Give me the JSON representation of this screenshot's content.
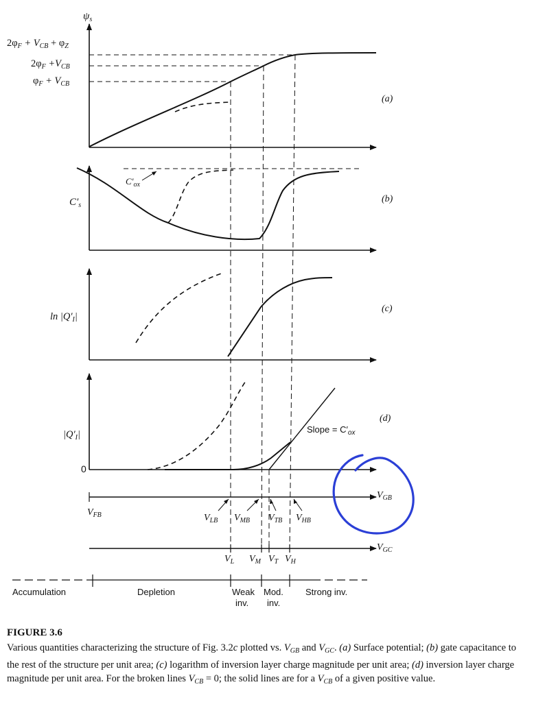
{
  "axis_labels": {
    "psi_s": "ψ",
    "psi_s_sub": "s",
    "cs": "C′",
    "cs_sub": "s",
    "ln_qi": "ln |Q′",
    "ln_qi_sub": "I",
    "ln_qi_end": "|",
    "qi": "|Q′",
    "qi_sub": "I",
    "qi_end": "|",
    "zero": "0",
    "vfb": "V",
    "vfb_sub": "FB"
  },
  "psi_levels": {
    "top": {
      "a": "2φ",
      "a_sub": "F",
      "b": " + V",
      "b_sub": "CB",
      "c": " + φ",
      "c_sub": "Z"
    },
    "mid": {
      "a": "2φ",
      "a_sub": "F",
      "b": " +V",
      "b_sub": "CB"
    },
    "low": {
      "a": "φ",
      "a_sub": "F",
      "b": " + V",
      "b_sub": "CB"
    }
  },
  "panel_tags": {
    "a": "(a)",
    "b": "(b)",
    "c": "(c)",
    "d": "(d)"
  },
  "cox_label": {
    "main": "C′",
    "sub": "ox"
  },
  "slope_label": {
    "text": "Slope = C′",
    "sub": "ox"
  },
  "vgb_axis": {
    "main": "V",
    "sub": "GB"
  },
  "vgc_axis": {
    "main": "V",
    "sub": "GC"
  },
  "vgb_points": [
    {
      "main": "V",
      "sub": "LB"
    },
    {
      "main": "V",
      "sub": "MB"
    },
    {
      "main": "V",
      "sub": "TB"
    },
    {
      "main": "V",
      "sub": "HB"
    }
  ],
  "vgc_points": [
    {
      "main": "V",
      "sub": "L"
    },
    {
      "main": "V",
      "sub": "M"
    },
    {
      "main": "V",
      "sub": "T"
    },
    {
      "main": "V",
      "sub": "H"
    }
  ],
  "regions": {
    "accumulation": "Accumulation",
    "depletion": "Depletion",
    "weak": "Weak",
    "weak2": "inv.",
    "mod": "Mod.",
    "mod2": "inv.",
    "strong": "Strong inv."
  },
  "caption": {
    "title": "FIGURE 3.6",
    "p1": "Various quantities characterizing the structure of Fig. 3.2",
    "p1_it": "c",
    "p2": " plotted vs. ",
    "vgb": "V",
    "vgb_sub": "GB",
    "p3": " and ",
    "vgc": "V",
    "vgc_sub": "GC",
    "p4": ". ",
    "a_tag": "(a)",
    "a_text": " Surface potential; ",
    "b_tag": "(b)",
    "b_text": " gate capacitance to the rest of the structure per unit area; ",
    "c_tag": "(c)",
    "c_text": " logarithm of inversion layer charge magnitude per unit area; ",
    "d_tag": "(d)",
    "d_text": " inversion layer charge magnitude per unit area. For the broken lines ",
    "vcb": "V",
    "vcb_sub": "CB",
    "eq": " = 0; the solid lines are for a ",
    "vcb2": "V",
    "vcb2_sub": "CB",
    "end": " of a given positive value."
  },
  "colors": {
    "ink": "#111111",
    "annotation": "#2b3fd6"
  }
}
